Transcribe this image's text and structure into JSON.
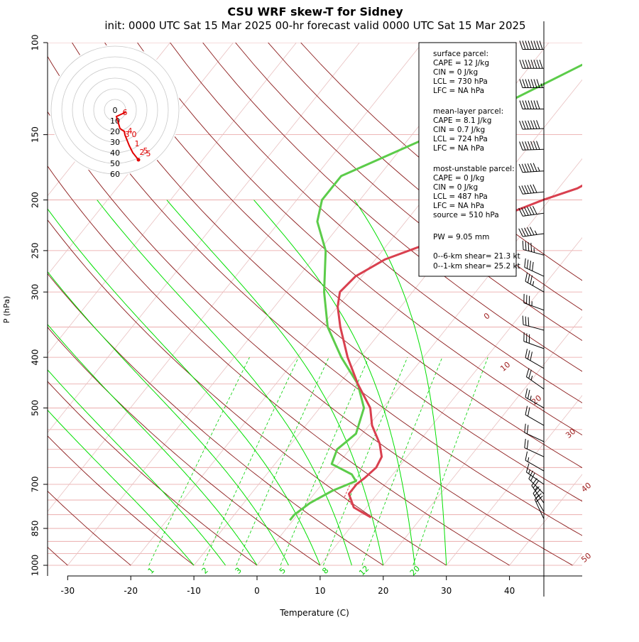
{
  "title": "CSU WRF skew-T for Sidney",
  "subtitle": "init: 0000 UTC Sat 15 Mar 2025    00-hr forecast valid 0000 UTC Sat 15 Mar 2025",
  "colors": {
    "temperature": "#d9404f",
    "dewpoint": "#5ccc4a",
    "isobar": "#e8a0a0",
    "dry_adiabat": "#8b1a1a",
    "moist_adiabat": "#00e000",
    "mixing_ratio": "#00d000",
    "isotherm": "#e8c0c0",
    "hodograph_line": "#e00000",
    "hodograph_ring": "#c8c8c8"
  },
  "chart_data": {
    "type": "line",
    "title": "CSU WRF skew-T for Sidney",
    "xlabel": "Temperature (C)",
    "ylabel": "P (hPa)",
    "log_y": true,
    "xlim": [
      -33,
      52
    ],
    "ylim": [
      1000,
      100
    ],
    "x_ticks": [
      -30,
      -20,
      -10,
      0,
      10,
      20,
      30,
      40
    ],
    "p_ticks": [
      100,
      150,
      200,
      250,
      300,
      400,
      500,
      700,
      850,
      1000
    ],
    "isotherms": [
      -80,
      -70,
      -60,
      -50,
      -40,
      -30,
      -20,
      -10,
      0,
      10,
      20,
      30,
      40,
      50
    ],
    "dry_adiabat_temps": [
      -50,
      -40,
      -30,
      -20,
      -10,
      0,
      10,
      20,
      30,
      40,
      50,
      60,
      70,
      80,
      90,
      100,
      110,
      120,
      130,
      140
    ],
    "dry_adiabat_labels": [
      "0",
      "10",
      "20",
      "30",
      "40",
      "50"
    ],
    "moist_adiabat_temps": [
      -10,
      -5,
      0,
      5,
      10,
      15,
      20,
      25,
      30
    ],
    "mixing_ratio_labels": [
      "1",
      "2",
      "3",
      "5",
      "8",
      "12",
      "20"
    ],
    "series": [
      {
        "name": "temperature",
        "p": [
          810,
          775,
          730,
          700,
          680,
          650,
          620,
          585,
          540,
          500,
          450,
          400,
          350,
          320,
          300,
          280,
          260,
          240,
          220,
          200,
          190,
          170,
          150,
          130,
          110,
          103
        ],
        "t": [
          12,
          8,
          5.5,
          5.5,
          6,
          6.5,
          6,
          4,
          0.5,
          -2,
          -7,
          -12,
          -17,
          -20,
          -21.5,
          -21,
          -18.5,
          -13,
          -7,
          -1,
          3,
          7,
          10.5,
          13.5,
          17,
          19
        ]
      },
      {
        "name": "parcel",
        "p": [
          810,
          780,
          740,
          700
        ],
        "t": [
          12.3,
          8.5,
          5.2,
          4.5
        ]
      },
      {
        "name": "dewpoint",
        "p": [
          820,
          800,
          760,
          720,
          690,
          670,
          640,
          600,
          560,
          500,
          450,
          400,
          350,
          300,
          250,
          220,
          200,
          180,
          170,
          130,
          108
        ],
        "t": [
          -0.5,
          -0.5,
          0.5,
          2.5,
          5,
          3.5,
          -1,
          -2,
          -1,
          -3,
          -7,
          -13,
          -19,
          -24,
          -29,
          -34,
          -36,
          -36,
          -33,
          -19,
          -11
        ]
      }
    ],
    "winds": [
      {
        "p": 103,
        "dir": 270,
        "spd": 80
      },
      {
        "p": 112,
        "dir": 270,
        "spd": 78
      },
      {
        "p": 122,
        "dir": 270,
        "spd": 76
      },
      {
        "p": 134,
        "dir": 270,
        "spd": 72
      },
      {
        "p": 146,
        "dir": 268,
        "spd": 70
      },
      {
        "p": 160,
        "dir": 268,
        "spd": 68
      },
      {
        "p": 176,
        "dir": 266,
        "spd": 65
      },
      {
        "p": 193,
        "dir": 264,
        "spd": 62
      },
      {
        "p": 212,
        "dir": 262,
        "spd": 58
      },
      {
        "p": 232,
        "dir": 262,
        "spd": 55
      },
      {
        "p": 255,
        "dir": 285,
        "spd": 45
      },
      {
        "p": 280,
        "dir": 295,
        "spd": 40
      },
      {
        "p": 300,
        "dir": 300,
        "spd": 35
      },
      {
        "p": 325,
        "dir": 290,
        "spd": 35
      },
      {
        "p": 355,
        "dir": 285,
        "spd": 32
      },
      {
        "p": 385,
        "dir": 290,
        "spd": 30
      },
      {
        "p": 420,
        "dir": 300,
        "spd": 30
      },
      {
        "p": 460,
        "dir": 305,
        "spd": 25
      },
      {
        "p": 500,
        "dir": 300,
        "spd": 25
      },
      {
        "p": 540,
        "dir": 300,
        "spd": 20
      },
      {
        "p": 580,
        "dir": 295,
        "spd": 20
      },
      {
        "p": 620,
        "dir": 295,
        "spd": 20
      },
      {
        "p": 660,
        "dir": 300,
        "spd": 15
      },
      {
        "p": 700,
        "dir": 305,
        "spd": 15
      },
      {
        "p": 730,
        "dir": 315,
        "spd": 20
      },
      {
        "p": 760,
        "dir": 325,
        "spd": 25
      },
      {
        "p": 790,
        "dir": 330,
        "spd": 25
      },
      {
        "p": 815,
        "dir": 335,
        "spd": 20
      }
    ],
    "hodograph": {
      "ring_labels": [
        "0",
        "10",
        "20",
        "30",
        "40",
        "50",
        "60"
      ],
      "height_labels": [
        "6",
        "4",
        "3",
        "0",
        "1",
        "2",
        "5",
        "5"
      ],
      "u": [
        15,
        2,
        7,
        13,
        14,
        16,
        20,
        25,
        33
      ],
      "v": [
        -3,
        -9,
        -26,
        -30,
        -35,
        -40,
        -50,
        -60,
        -70
      ]
    }
  },
  "stats": {
    "surface_header": "surface parcel:",
    "surface_cape": "CAPE = 12 J/kg",
    "surface_cin": "CIN = 0 J/kg",
    "surface_lcl": "LCL = 730 hPa",
    "surface_lfc": "LFC = NA hPa",
    "mean_header": "mean-layer parcel:",
    "mean_cape": "CAPE = 8.1 J/kg",
    "mean_cin": "CIN = 0.7 J/kg",
    "mean_lcl": "LCL = 724 hPa",
    "mean_lfc": "LFC = NA hPa",
    "mu_header": "most-unstable parcel:",
    "mu_cape": "CAPE = 0 J/kg",
    "mu_cin": "CIN = 0 J/kg",
    "mu_lcl": "LCL = 487 hPa",
    "mu_lfc": "LFC = NA hPa",
    "mu_source": "source = 510 hPa",
    "pw": "PW =  9.05 mm",
    "shear_06": "0--6-km shear= 21.3 kt",
    "shear_01": "0--1-km shear= 25.2 kt"
  }
}
